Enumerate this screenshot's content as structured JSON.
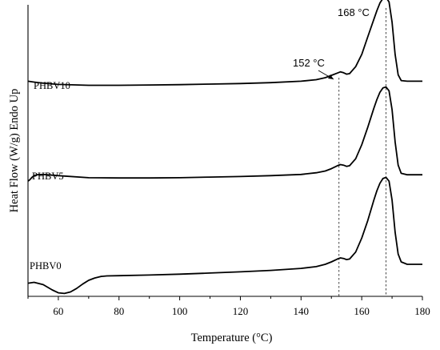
{
  "chart_data": {
    "type": "line",
    "xlabel": "Temperature (°C)",
    "ylabel": "Heat Flow (W/g) Endo Up",
    "xlim": [
      50,
      180
    ],
    "xticks": [
      60,
      80,
      100,
      120,
      140,
      160,
      180
    ],
    "yticks_shown": false,
    "ylim": [
      0,
      10
    ],
    "grid": false,
    "series": [
      {
        "name": "PHBV10",
        "x": [
          50,
          52,
          55,
          60,
          70,
          80,
          90,
          100,
          110,
          120,
          130,
          140,
          145,
          148,
          150,
          152,
          153,
          154,
          155,
          156,
          158,
          160,
          162,
          164,
          165,
          166,
          167,
          168,
          169,
          170,
          171,
          172,
          173,
          175,
          180
        ],
        "y": [
          7.38,
          7.35,
          7.31,
          7.27,
          7.24,
          7.24,
          7.25,
          7.26,
          7.28,
          7.3,
          7.33,
          7.38,
          7.43,
          7.5,
          7.58,
          7.66,
          7.7,
          7.67,
          7.62,
          7.64,
          7.88,
          8.3,
          8.9,
          9.5,
          9.8,
          10.06,
          10.22,
          10.25,
          10.1,
          9.4,
          8.3,
          7.6,
          7.4,
          7.38,
          7.38
        ]
      },
      {
        "name": "PHBV5",
        "x": [
          50,
          50.6,
          51.3,
          52,
          53,
          55,
          60,
          70,
          80,
          90,
          100,
          110,
          120,
          130,
          140,
          145,
          148,
          150,
          152,
          153,
          154,
          155,
          156,
          158,
          160,
          162,
          164,
          165,
          166,
          167,
          168,
          169,
          170,
          171,
          172,
          173,
          175,
          180
        ],
        "y": [
          3.95,
          4.0,
          4.08,
          4.14,
          4.17,
          4.18,
          4.14,
          4.07,
          4.06,
          4.06,
          4.07,
          4.09,
          4.11,
          4.14,
          4.18,
          4.24,
          4.3,
          4.38,
          4.48,
          4.52,
          4.5,
          4.46,
          4.48,
          4.72,
          5.2,
          5.8,
          6.45,
          6.75,
          7.0,
          7.15,
          7.18,
          7.05,
          6.4,
          5.3,
          4.5,
          4.22,
          4.17,
          4.17
        ]
      },
      {
        "name": "PHBV0",
        "x": [
          50,
          52,
          55,
          58,
          60,
          62,
          64,
          66,
          68,
          70,
          72,
          74,
          76,
          80,
          90,
          100,
          110,
          120,
          130,
          140,
          145,
          148,
          150,
          152,
          153,
          154,
          155,
          156,
          158,
          160,
          162,
          164,
          165,
          166,
          167,
          168,
          169,
          170,
          171,
          172,
          173,
          175,
          180
        ],
        "y": [
          0.45,
          0.48,
          0.4,
          0.22,
          0.12,
          0.1,
          0.15,
          0.27,
          0.42,
          0.55,
          0.63,
          0.68,
          0.7,
          0.71,
          0.73,
          0.76,
          0.8,
          0.84,
          0.89,
          0.96,
          1.02,
          1.1,
          1.18,
          1.28,
          1.32,
          1.3,
          1.26,
          1.28,
          1.52,
          2.0,
          2.6,
          3.3,
          3.62,
          3.88,
          4.04,
          4.08,
          3.95,
          3.3,
          2.2,
          1.45,
          1.18,
          1.1,
          1.1
        ]
      }
    ],
    "series_labels": [
      "PHBV10",
      "PHBV5",
      "PHBV0"
    ],
    "reference_lines": [
      {
        "x": 152.5,
        "label": "152 °C"
      },
      {
        "x": 168,
        "label": "168 °C"
      }
    ]
  }
}
